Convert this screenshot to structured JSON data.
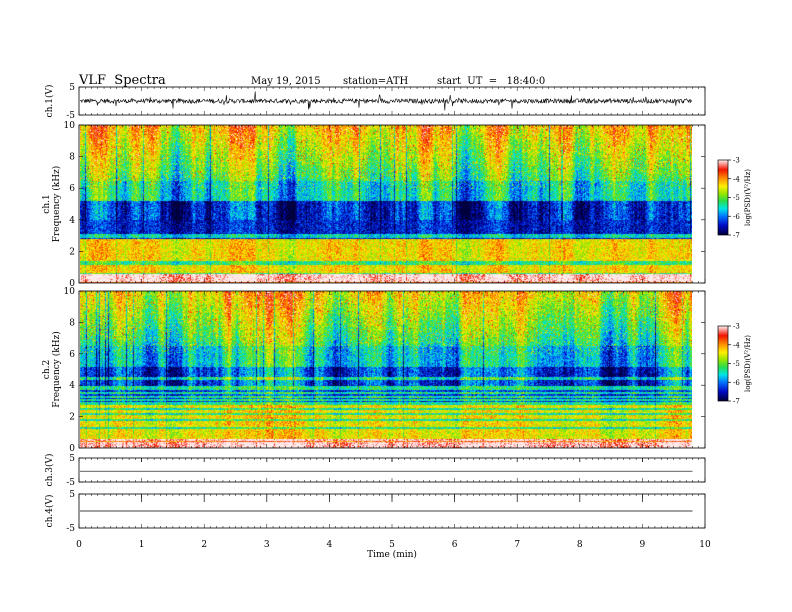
{
  "header": {
    "title": "VLF  Spectra",
    "date": "May 19, 2015",
    "station": "station=ATH",
    "start": "start  UT  =   18:40:0"
  },
  "chart_data": [
    {
      "type": "line",
      "ylabel": "ch.1(V)",
      "ylim": [
        -5,
        5
      ],
      "yticks": [
        "5",
        "-5"
      ],
      "style": "noisy",
      "xlim": [
        0,
        10
      ],
      "data_end": 9.8
    },
    {
      "type": "heatmap",
      "ylabel": [
        "ch.1",
        "Frequency  (kHz)"
      ],
      "ylim": [
        0,
        10
      ],
      "yticks": [
        "0",
        "2",
        "4",
        "6",
        "8",
        "10"
      ],
      "colorbar": {
        "label": "log(PSD)(V²/Hz)",
        "range": [
          -7,
          -3
        ],
        "ticks": [
          "-3",
          "-4",
          "-5",
          "-6",
          "-7"
        ]
      }
    },
    {
      "type": "heatmap",
      "ylabel": [
        "ch.2",
        "Frequency  (kHz)"
      ],
      "ylim": [
        0,
        10
      ],
      "yticks": [
        "0",
        "2",
        "4",
        "6",
        "8",
        "10"
      ],
      "colorbar": {
        "label": "log(PSD)(V²/Hz)",
        "range": [
          -7,
          -3
        ],
        "ticks": [
          "-3",
          "-4",
          "-5",
          "-6",
          "-7"
        ]
      }
    },
    {
      "type": "line",
      "ylabel": "ch.3(V)",
      "ylim": [
        -5,
        5
      ],
      "yticks": [
        "5",
        "-5"
      ],
      "style": "flat",
      "level": -0.5
    },
    {
      "type": "line",
      "ylabel": "ch.4(V)",
      "ylim": [
        -5,
        5
      ],
      "yticks": [
        "5",
        "-5"
      ],
      "style": "flat",
      "level": 0
    }
  ],
  "xaxis": {
    "label": "Time  (min)",
    "range": [
      0,
      10
    ],
    "ticks": [
      "0",
      "1",
      "2",
      "3",
      "4",
      "5",
      "6",
      "7",
      "8",
      "9",
      "10"
    ]
  }
}
